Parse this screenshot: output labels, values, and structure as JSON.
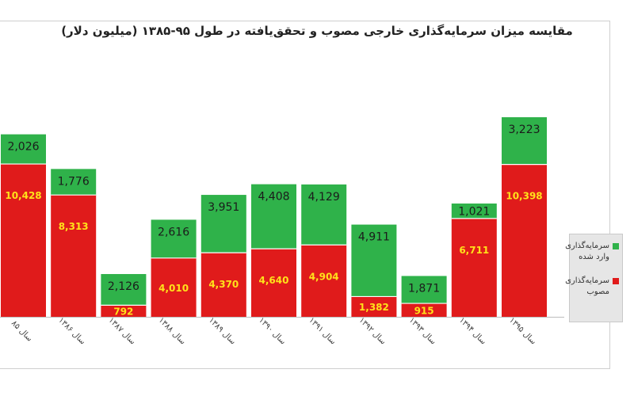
{
  "chart_data": {
    "type": "bar",
    "stacked": true,
    "title": "مقایسه میزان سرمایه‌گذاری خارجی مصوب و تحقق‌یافته در طول ۹۵-۱۳۸۵ (میلیون دلار)",
    "categories": [
      "سال ۸۵",
      "سال ۱۳۸۶",
      "سال ۱۳۸۷",
      "سال ۱۳۸۸",
      "سال ۱۳۸۹",
      "سال ۱۳۹۰",
      "سال ۱۳۹۱",
      "سال ۱۳۹۲",
      "سال ۱۳۹۳",
      "سال ۱۳۹۴",
      "سال ۱۳۹۵"
    ],
    "series": [
      {
        "name": "سرمایه‌گذاری مصوب",
        "color": "#e01b1b",
        "values": [
          10428,
          8313,
          792,
          4010,
          4370,
          4640,
          4904,
          1382,
          915,
          6711,
          10398
        ],
        "labels": [
          "10,428",
          "8,313",
          "792",
          "4,010",
          "4,370",
          "4,640",
          "4,904",
          "1,382",
          "915",
          "6,711",
          "10,398"
        ]
      },
      {
        "name": "سرمایه‌گذاری وارد شده",
        "color": "#2fb24a",
        "values": [
          2026,
          1776,
          2126,
          2616,
          3951,
          4408,
          4129,
          4911,
          1871,
          1021,
          3223
        ],
        "labels": [
          "2,026",
          "1,776",
          "2,126",
          "2,616",
          "3,951",
          "4,408",
          "4,129",
          "4,911",
          "1,871",
          "1,021",
          "3,223"
        ]
      }
    ],
    "legend": {
      "position": "right",
      "items": [
        {
          "line1": "سرمایه‌گذاری",
          "line2": "وارد شده"
        },
        {
          "line1": "سرمایه‌گذاری",
          "line2": "مصوب"
        }
      ]
    },
    "grid": false
  }
}
